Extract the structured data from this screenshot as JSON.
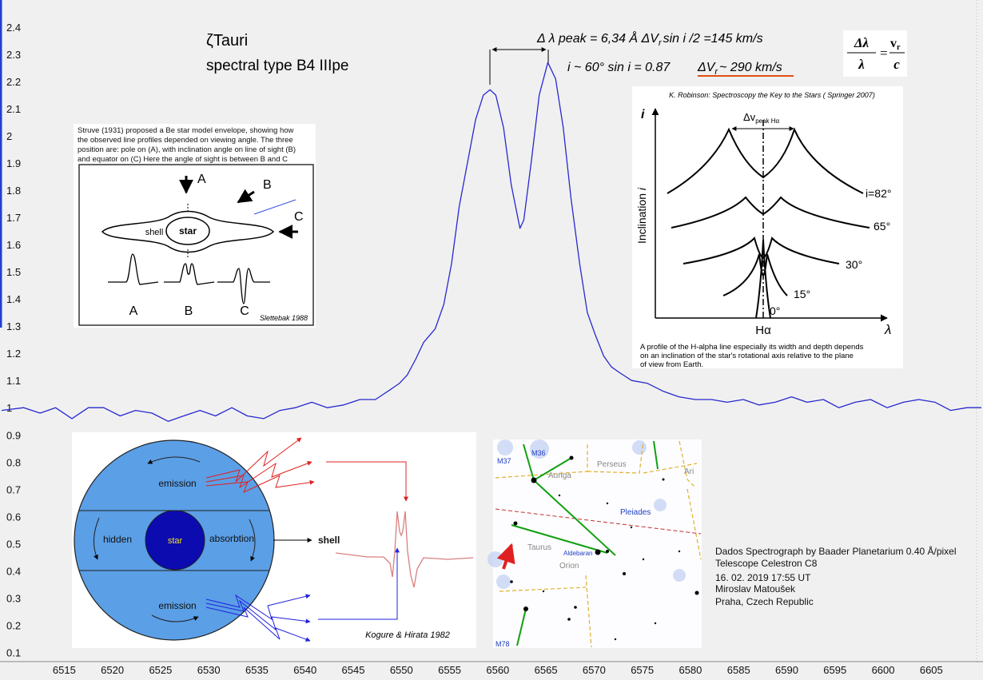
{
  "chart_data": {
    "type": "line",
    "color": "#2828d0",
    "x": [
      6508.5,
      6510.8,
      6512.5,
      6514.1,
      6515.8,
      6517.5,
      6519.1,
      6520.8,
      6522.4,
      6524.1,
      6525.8,
      6527.4,
      6529.1,
      6530.7,
      6532.4,
      6534.0,
      6535.7,
      6537.4,
      6539.0,
      6540.7,
      6542.3,
      6544.0,
      6545.7,
      6547.3,
      6549.0,
      6549.8,
      6550.6,
      6551.5,
      6552.3,
      6553.5,
      6554.4,
      6555.2,
      6556.0,
      6556.9,
      6557.7,
      6558.5,
      6559.2,
      6559.8,
      6560.6,
      6561.4,
      6562.3,
      6562.7,
      6563.5,
      6564.3,
      6565.2,
      6566.0,
      6566.8,
      6567.6,
      6568.5,
      6569.3,
      6570.1,
      6571.0,
      6571.8,
      6572.6,
      6573.9,
      6575.5,
      6577.2,
      6578.8,
      6580.5,
      6582.2,
      6583.8,
      6585.5,
      6587.1,
      6588.8,
      6590.5,
      6592.1,
      6593.8,
      6595.4,
      6597.1,
      6598.7,
      6600.4,
      6602.1,
      6603.7,
      6605.4,
      6607.0,
      6608.7,
      6610.2
    ],
    "values": [
      0.99,
      1.0,
      0.98,
      1.0,
      0.96,
      1.0,
      1.0,
      0.97,
      0.99,
      0.98,
      0.95,
      0.97,
      0.99,
      0.97,
      1.0,
      0.97,
      0.96,
      0.99,
      1.0,
      1.02,
      1.0,
      1.01,
      1.03,
      1.03,
      1.07,
      1.09,
      1.12,
      1.18,
      1.24,
      1.29,
      1.38,
      1.53,
      1.74,
      1.91,
      2.06,
      2.15,
      2.17,
      2.15,
      2.03,
      1.82,
      1.66,
      1.69,
      1.91,
      2.15,
      2.27,
      2.21,
      2.03,
      1.77,
      1.53,
      1.35,
      1.27,
      1.19,
      1.15,
      1.13,
      1.1,
      1.09,
      1.06,
      1.04,
      1.03,
      1.03,
      1.02,
      1.03,
      1.01,
      1.02,
      1.04,
      1.02,
      1.03,
      1.0,
      1.02,
      1.03,
      1.0,
      1.02,
      1.03,
      1.02,
      0.99,
      1.0,
      1.0
    ],
    "xlim": [
      6508.5,
      6610.2
    ],
    "ylim": [
      0.06,
      2.5
    ],
    "xticks": [
      6515,
      6520,
      6525,
      6530,
      6535,
      6540,
      6545,
      6550,
      6555,
      6560,
      6565,
      6570,
      6575,
      6580,
      6585,
      6590,
      6595,
      6600,
      6605
    ],
    "yticks": [
      0.1,
      0.2,
      0.3,
      0.4,
      0.5,
      0.6,
      0.7,
      0.8,
      0.9,
      1,
      1.1,
      1.2,
      1.3,
      1.4,
      1.5,
      1.6,
      1.7,
      1.8,
      1.9,
      2,
      2.1,
      2.2,
      2.3,
      2.4
    ],
    "annotations": {
      "star": "ζTauri",
      "spectral_type": "spectral type B4 IIIpe",
      "peak_separation": [
        "Δ λ peak = 6,34 Å  ΔV",
        "r",
        "sin i /2 =145 km/s"
      ],
      "inclination": "i ~ 60° sin i = 0.87",
      "velocity": [
        "ΔV",
        "r",
        "~ 290 km/s"
      ],
      "formula": {
        "lhs_num": "Δλ",
        "lhs_den": "λ",
        "eq": "=",
        "rhs_num": "v",
        "rhs_sub": "r",
        "rhs_den": "c"
      }
    },
    "credits": [
      "Dados Spectrograph by Baader Planetarium 0.40 Å/pixel",
      "Telescope Celestron C8",
      "16. 02. 2019 17:55 UT",
      " Miroslav Matoušek",
      " Praha, Czech Republic"
    ]
  },
  "insets": {
    "struve": {
      "caption": [
        "Struve (1931) proposed a Be star model envelope, showing how",
        "the observed line profiles depended on viewing angle. The three",
        "position are: pole on (A), with inclination angle on line of sight (B)",
        "and equator on (C)  Here the angle of sight is between B and C"
      ],
      "views": [
        "A",
        "B",
        "C"
      ],
      "shell": "shell",
      "star": "star",
      "profiles": [
        "A",
        "B",
        "C"
      ],
      "source": "Slettebak 1988"
    },
    "robinson": {
      "title": "K. Robinson: Spectroscopy the Key to the Stars ( Springer 2007)",
      "y_axis": "i",
      "y_label": [
        "Inclination ",
        "i"
      ],
      "width": "Δv",
      "width_sub": "peak Hα",
      "curves": [
        "i=82°",
        "65°",
        "30°",
        "15°",
        "0°"
      ],
      "line": "Hα",
      "x_axis": "λ",
      "caption": [
        "A profile of the H-alpha line especially its width and depth depends",
        "on an inclination of  the star's rotational axis relative to the plane",
        "of view from Earth."
      ]
    },
    "shell_model": {
      "top": "emission",
      "left": "hidden",
      "star": "star",
      "right": "absorbtion",
      "bottom": "emission",
      "shell": "shell",
      "source": "Kogure & Hirata 1982"
    },
    "star_map": {
      "labels": [
        "M37",
        "M36",
        "Perseus",
        "Auriga",
        "Ari",
        "Pleiades",
        "Taurus",
        "Aldebaran",
        "Orion",
        "M78"
      ]
    }
  }
}
